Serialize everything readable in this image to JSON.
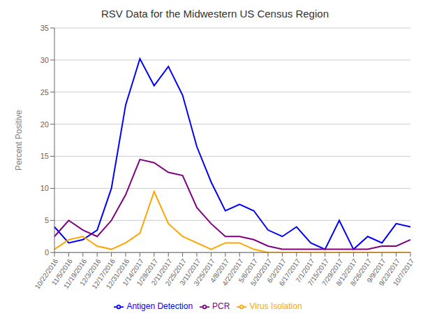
{
  "chart_data": {
    "type": "line",
    "title": "RSV Data for the Midwestern US Census Region",
    "ylabel": "Percent Positive",
    "categories": [
      "10/22/2016",
      "11/5/2016",
      "11/19/2016",
      "12/3/2016",
      "12/17/2016",
      "12/31/2016",
      "1/14/2017",
      "1/28/2017",
      "2/11/2017",
      "2/25/2017",
      "3/11/2017",
      "3/25/2017",
      "4/8/2017",
      "4/22/2017",
      "5/6/2017",
      "5/20/2017",
      "6/3/2017",
      "6/17/2017",
      "7/1/2017",
      "7/15/2017",
      "7/29/2017",
      "8/12/2017",
      "8/26/2017",
      "9/9/2017",
      "9/23/2017",
      "10/7/2017"
    ],
    "series": [
      {
        "name": "Antigen Detection",
        "color": "#0000ff",
        "values": [
          4.0,
          1.5,
          2.0,
          3.5,
          10.0,
          23.0,
          30.2,
          26.0,
          29.0,
          24.5,
          16.5,
          11.0,
          6.5,
          7.5,
          6.5,
          3.5,
          2.5,
          4.0,
          1.5,
          0.5,
          5.0,
          0.5,
          2.5,
          1.5,
          4.5,
          4.0
        ]
      },
      {
        "name": "Virus Isolation",
        "color": "#ffa500",
        "values": [
          0.5,
          2.0,
          2.5,
          1.0,
          0.5,
          1.5,
          3.0,
          9.5,
          4.5,
          2.5,
          1.5,
          0.5,
          1.5,
          1.5,
          0.5,
          0.0,
          0.0,
          0.0,
          0.0,
          0.0,
          0.0,
          0.0,
          0.0,
          0.0,
          0.0,
          0.0
        ]
      },
      {
        "name": "PCR",
        "color": "#800080",
        "values": [
          2.5,
          5.0,
          3.5,
          2.5,
          5.0,
          9.0,
          14.5,
          14.0,
          12.5,
          12.0,
          7.0,
          4.5,
          2.5,
          2.5,
          2.0,
          1.0,
          0.5,
          0.5,
          0.5,
          0.5,
          0.5,
          0.5,
          0.5,
          1.0,
          1.0,
          2.0
        ]
      }
    ],
    "ylim": [
      0,
      35
    ],
    "yticks": [
      0,
      5,
      10,
      15,
      20,
      25,
      30,
      35
    ],
    "grid": true,
    "legend": "bottom"
  }
}
